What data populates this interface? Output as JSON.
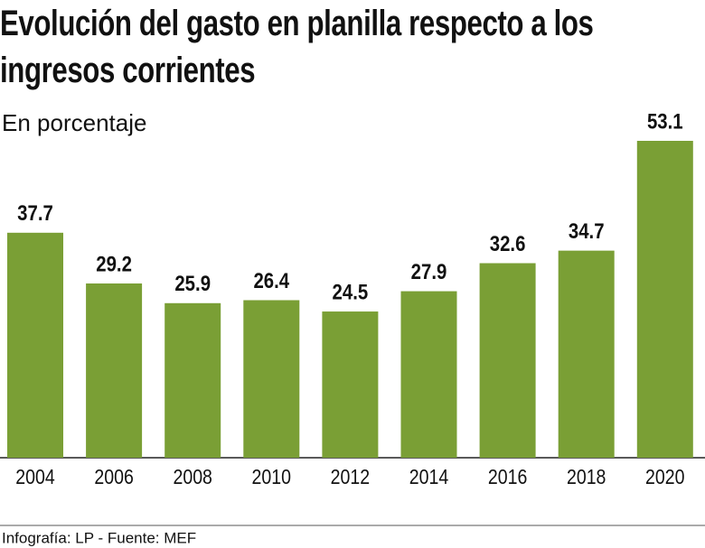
{
  "chart_data": {
    "type": "bar",
    "title": "Evolución del gasto en planilla respecto a los ingresos corrientes",
    "subtitle": "En porcentaje",
    "categories": [
      "2004",
      "2006",
      "2008",
      "2010",
      "2012",
      "2014",
      "2016",
      "2018",
      "2020"
    ],
    "values": [
      37.7,
      29.2,
      25.9,
      26.4,
      24.5,
      27.9,
      32.6,
      34.7,
      53.1
    ],
    "color": "#7a9f35",
    "source": "Infografía: LP - Fuente: MEF"
  }
}
